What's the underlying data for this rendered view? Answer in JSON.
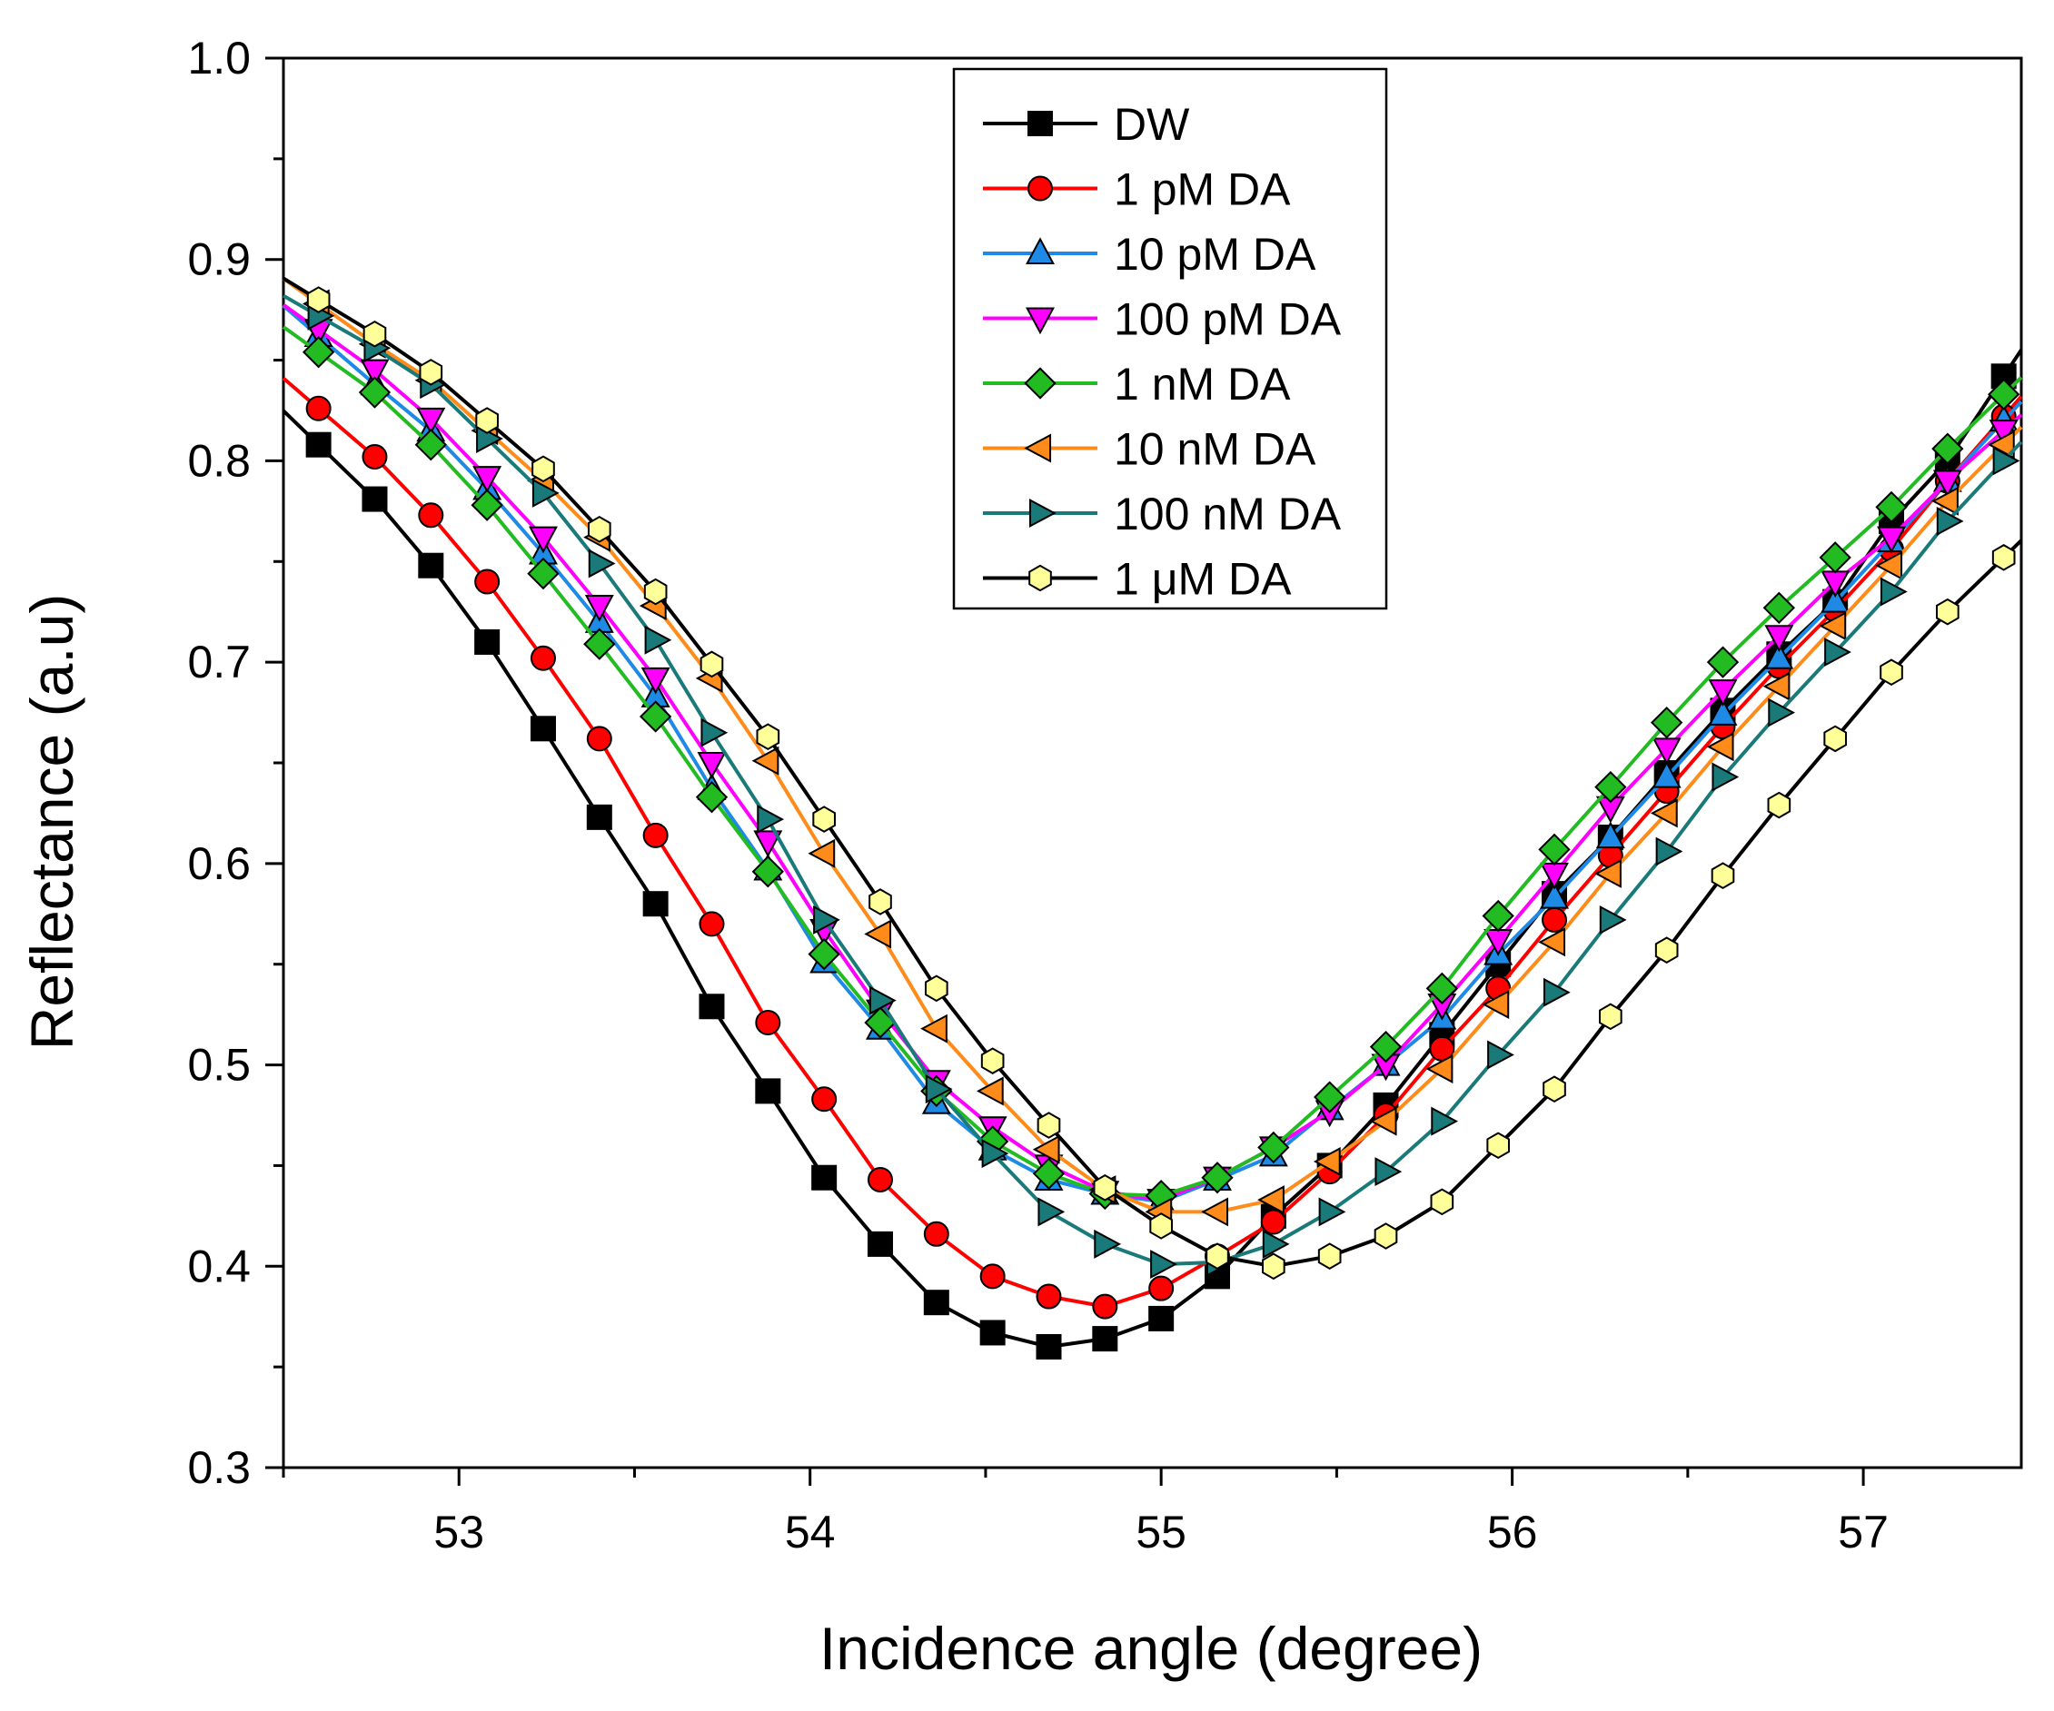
{
  "chart_data": {
    "type": "line",
    "xlabel": "Incidence angle (degree)",
    "ylabel": "Reflectance (a.u)",
    "xlim": [
      52.5,
      57.45
    ],
    "ylim": [
      0.3,
      1.0
    ],
    "xticks": [
      53,
      54,
      55,
      56,
      57
    ],
    "xtick_labels": [
      "53",
      "54",
      "55",
      "56",
      "57"
    ],
    "yticks": [
      0.3,
      0.4,
      0.5,
      0.6,
      0.7,
      0.8,
      0.9,
      1.0
    ],
    "ytick_labels": [
      "0.3",
      "0.4",
      "0.5",
      "0.6",
      "0.7",
      "0.8",
      "0.9",
      "1.0"
    ],
    "legend_position": "top-center",
    "x": [
      52.6,
      52.76,
      52.92,
      53.08,
      53.24,
      53.4,
      53.56,
      53.72,
      53.88,
      54.04,
      54.2,
      54.36,
      54.52,
      54.68,
      54.84,
      55.0,
      55.16,
      55.32,
      55.48,
      55.64,
      55.8,
      55.96,
      56.12,
      56.28,
      56.44,
      56.6,
      56.76,
      56.92,
      57.08,
      57.24,
      57.4
    ],
    "series": [
      {
        "name": "DW",
        "color": "#000000",
        "marker": "square",
        "values": [
          0.808,
          0.781,
          0.748,
          0.71,
          0.667,
          0.623,
          0.58,
          0.529,
          0.487,
          0.444,
          0.411,
          0.382,
          0.367,
          0.36,
          0.364,
          0.374,
          0.395,
          0.425,
          0.45,
          0.48,
          0.515,
          0.55,
          0.585,
          0.613,
          0.645,
          0.676,
          0.704,
          0.73,
          0.77,
          0.8,
          0.842
        ]
      },
      {
        "name": "1 pM DA",
        "color": "#ff0000",
        "marker": "circle",
        "values": [
          0.826,
          0.802,
          0.773,
          0.74,
          0.702,
          0.662,
          0.614,
          0.57,
          0.521,
          0.483,
          0.443,
          0.416,
          0.395,
          0.385,
          0.38,
          0.389,
          0.405,
          0.422,
          0.447,
          0.475,
          0.508,
          0.538,
          0.572,
          0.604,
          0.636,
          0.668,
          0.698,
          0.726,
          0.756,
          0.79,
          0.822
        ]
      },
      {
        "name": "10 pM DA",
        "color": "#1e8ae6",
        "marker": "triangle-up",
        "values": [
          0.862,
          0.838,
          0.815,
          0.786,
          0.754,
          0.72,
          0.683,
          0.637,
          0.597,
          0.551,
          0.518,
          0.481,
          0.458,
          0.443,
          0.436,
          0.432,
          0.443,
          0.455,
          0.478,
          0.5,
          0.523,
          0.555,
          0.583,
          0.613,
          0.643,
          0.674,
          0.702,
          0.73,
          0.76,
          0.79,
          0.82
        ]
      },
      {
        "name": "100 pM DA",
        "color": "#ff00ff",
        "marker": "triangle-down",
        "values": [
          0.865,
          0.845,
          0.821,
          0.792,
          0.762,
          0.728,
          0.692,
          0.65,
          0.611,
          0.567,
          0.527,
          0.492,
          0.469,
          0.45,
          0.437,
          0.433,
          0.444,
          0.459,
          0.477,
          0.5,
          0.53,
          0.562,
          0.595,
          0.628,
          0.657,
          0.686,
          0.713,
          0.74,
          0.762,
          0.79,
          0.815
        ]
      },
      {
        "name": "1 nM DA",
        "color": "#22bb22",
        "marker": "diamond",
        "values": [
          0.854,
          0.834,
          0.808,
          0.778,
          0.744,
          0.709,
          0.673,
          0.633,
          0.596,
          0.555,
          0.521,
          0.487,
          0.462,
          0.446,
          0.436,
          0.435,
          0.444,
          0.459,
          0.484,
          0.509,
          0.538,
          0.574,
          0.607,
          0.638,
          0.67,
          0.7,
          0.727,
          0.752,
          0.777,
          0.806,
          0.833
        ]
      },
      {
        "name": "10 nM DA",
        "color": "#ff8c1a",
        "marker": "triangle-left",
        "values": [
          0.878,
          0.858,
          0.84,
          0.815,
          0.79,
          0.762,
          0.728,
          0.692,
          0.651,
          0.605,
          0.565,
          0.518,
          0.487,
          0.458,
          0.438,
          0.427,
          0.427,
          0.433,
          0.452,
          0.472,
          0.498,
          0.53,
          0.561,
          0.595,
          0.625,
          0.658,
          0.688,
          0.718,
          0.748,
          0.78,
          0.808
        ]
      },
      {
        "name": "100 nM DA",
        "color": "#1a7a7a",
        "marker": "triangle-right",
        "values": [
          0.872,
          0.856,
          0.838,
          0.811,
          0.784,
          0.749,
          0.711,
          0.665,
          0.622,
          0.572,
          0.532,
          0.488,
          0.456,
          0.427,
          0.411,
          0.401,
          0.402,
          0.411,
          0.427,
          0.447,
          0.472,
          0.505,
          0.536,
          0.572,
          0.606,
          0.643,
          0.675,
          0.705,
          0.735,
          0.77,
          0.8
        ]
      },
      {
        "name": "1 μM DA",
        "color": "#000000",
        "fill": "#ffff99",
        "marker": "hexagon",
        "values": [
          0.88,
          0.863,
          0.844,
          0.82,
          0.796,
          0.766,
          0.735,
          0.699,
          0.663,
          0.622,
          0.581,
          0.538,
          0.502,
          0.47,
          0.439,
          0.42,
          0.405,
          0.4,
          0.405,
          0.415,
          0.432,
          0.46,
          0.488,
          0.524,
          0.557,
          0.594,
          0.629,
          0.662,
          0.695,
          0.725,
          0.752
        ]
      }
    ]
  }
}
